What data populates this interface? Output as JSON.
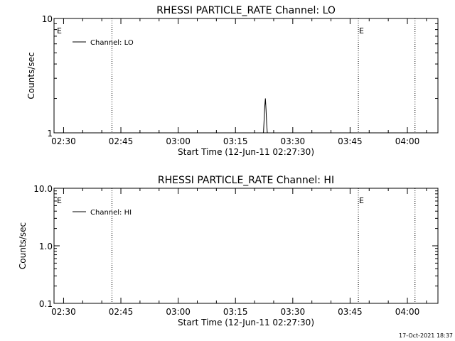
{
  "footer_timestamp": "17-Oct-2021 18:37",
  "colors": {
    "foreground": "#000000",
    "background": "#ffffff"
  },
  "chart_data": [
    {
      "type": "line",
      "title": "RHESSI PARTICLE_RATE Channel: LO",
      "xlabel": "Start Time (12-Jun-11 02:27:30)",
      "ylabel": "Counts/sec",
      "y_scale": "log",
      "ylim": [
        1,
        10
      ],
      "xlim": [
        "02:27:30",
        "04:08:00"
      ],
      "x_ticks": [
        "02:30",
        "02:45",
        "03:00",
        "03:15",
        "03:30",
        "03:45",
        "04:00"
      ],
      "y_ticks": [
        "1",
        "10"
      ],
      "legend": {
        "position": "top-left",
        "entries": [
          "Channel: LO"
        ]
      },
      "series": [
        {
          "name": "Channel: LO",
          "x": [
            "03:22:20",
            "03:22:30",
            "03:22:40",
            "03:22:50",
            "03:23:00",
            "03:23:10",
            "03:23:20"
          ],
          "y": [
            1,
            1.3,
            1.7,
            2,
            1.6,
            1.2,
            1
          ]
        }
      ],
      "vlines": [
        {
          "x": "02:42:40",
          "label": ""
        },
        {
          "x": "03:47:10",
          "label": "E"
        },
        {
          "x": "04:02:00",
          "label": ""
        }
      ],
      "corner_label": "E"
    },
    {
      "type": "line",
      "title": "RHESSI PARTICLE_RATE Channel: HI",
      "xlabel": "Start Time (12-Jun-11 02:27:30)",
      "ylabel": "Counts/sec",
      "y_scale": "log",
      "ylim": [
        0.1,
        10
      ],
      "xlim": [
        "02:27:30",
        "04:08:00"
      ],
      "x_ticks": [
        "02:30",
        "02:45",
        "03:00",
        "03:15",
        "03:30",
        "03:45",
        "04:00"
      ],
      "y_ticks": [
        "0.1",
        "1.0",
        "10.0"
      ],
      "legend": {
        "position": "top-left",
        "entries": [
          "Channel: HI"
        ]
      },
      "series": [
        {
          "name": "Channel: HI",
          "x": [],
          "y": []
        }
      ],
      "vlines": [
        {
          "x": "02:42:40",
          "label": ""
        },
        {
          "x": "03:47:10",
          "label": "E"
        },
        {
          "x": "04:02:00",
          "label": ""
        }
      ],
      "corner_label": "E"
    }
  ]
}
